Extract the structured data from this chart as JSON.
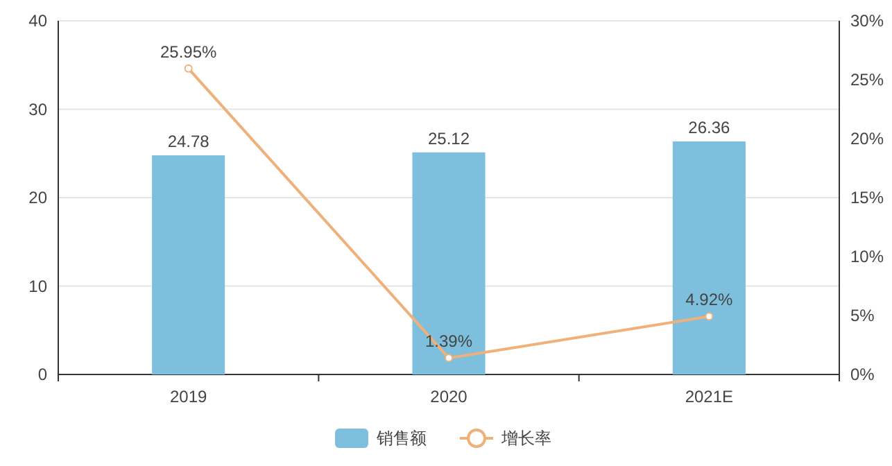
{
  "chart_data": {
    "type": "bar",
    "categories": [
      "2019",
      "2020",
      "2021E"
    ],
    "series": [
      {
        "name": "销售额",
        "color": "#7dbfdc",
        "values": [
          24.78,
          25.12,
          26.36
        ],
        "value_labels": [
          "24.78",
          "25.12",
          "26.36"
        ]
      },
      {
        "name": "增长率",
        "type": "line",
        "axis": "y2",
        "color": "#f0b07a",
        "marker": "circle",
        "values": [
          25.95,
          1.39,
          4.92
        ],
        "value_labels": [
          "25.95%",
          "1.39%",
          "4.92%"
        ]
      }
    ],
    "ylim": [
      0,
      40
    ],
    "yticks": [
      0,
      10,
      20,
      30,
      40
    ],
    "y2lim": [
      0,
      30
    ],
    "y2ticks": [
      {
        "value": 0,
        "label": "0%"
      },
      {
        "value": 5,
        "label": "5%"
      },
      {
        "value": 10,
        "label": "10%"
      },
      {
        "value": 15,
        "label": "15%"
      },
      {
        "value": 20,
        "label": "20%"
      },
      {
        "value": 25,
        "label": "25%"
      },
      {
        "value": 30,
        "label": "30%"
      }
    ],
    "grid": "y",
    "legend": "bottom"
  }
}
